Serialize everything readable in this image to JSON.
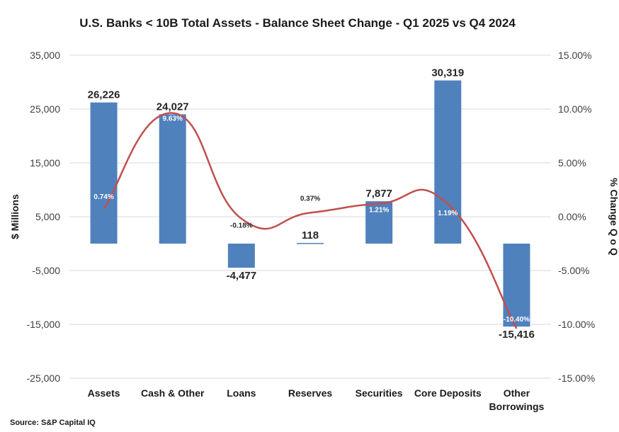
{
  "chart_data": {
    "type": "bar",
    "title": "U.S. Banks < 10B Total Assets - Balance Sheet Change - Q1 2025 vs Q4 2024",
    "categories": [
      "Assets",
      "Cash & Other",
      "Loans",
      "Reserves",
      "Securities",
      "Core Deposits",
      "Other Borrowings"
    ],
    "category_lines": [
      [
        "Assets"
      ],
      [
        "Cash & Other"
      ],
      [
        "Loans"
      ],
      [
        "Reserves"
      ],
      [
        "Securities"
      ],
      [
        "Core Deposits"
      ],
      [
        "Other",
        "Borrowings"
      ]
    ],
    "series": [
      {
        "axis": "left",
        "type": "bar",
        "values": [
          26226,
          24027,
          -4477,
          118,
          7877,
          30319,
          -15416
        ],
        "labels": [
          "26,226",
          "24,027",
          "-4,477",
          "118",
          "7,877",
          "30,319",
          "-15,416"
        ],
        "color": "#4f81bd"
      },
      {
        "axis": "right",
        "type": "line",
        "values": [
          0.74,
          9.63,
          -0.18,
          0.37,
          1.21,
          1.19,
          -10.4
        ],
        "labels": [
          "0.74%",
          "9.63%",
          "-0.18%",
          "0.37%",
          "1.21%",
          "1.19%",
          "-10.40%"
        ],
        "color": "#c0504d"
      }
    ],
    "ylabel": "$ Millions",
    "y2label": "% Change Q o Q",
    "ylim": [
      -25000,
      35000
    ],
    "y2lim": [
      -15,
      15
    ],
    "yticks": [
      "35,000",
      "25,000",
      "15,000",
      "5,000",
      "-5,000",
      "-15,000",
      "-25,000"
    ],
    "y2ticks": [
      "15.00%",
      "10.00%",
      "5.00%",
      "0.00%",
      "-5.00%",
      "-10.00%",
      "-15.00%"
    ],
    "grid": true,
    "source": "Source: S&P Capital IQ"
  }
}
